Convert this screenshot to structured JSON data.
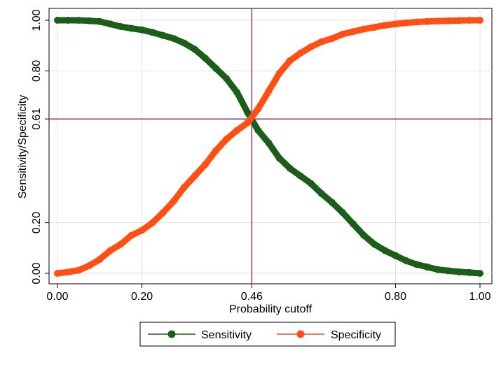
{
  "chart_data": {
    "type": "line",
    "title": "",
    "xlabel": "Probability cutoff",
    "ylabel": "Sensitivity/Specificity",
    "xlim": [
      0,
      1
    ],
    "ylim": [
      0,
      1
    ],
    "x_ticks": [
      {
        "value": 0.0,
        "label": "0.00"
      },
      {
        "value": 0.2,
        "label": "0.20"
      },
      {
        "value": 0.46,
        "label": "0.46"
      },
      {
        "value": 0.8,
        "label": "0.80"
      },
      {
        "value": 1.0,
        "label": "1.00"
      }
    ],
    "y_ticks": [
      {
        "value": 0.0,
        "label": "0.00"
      },
      {
        "value": 0.2,
        "label": "0.20"
      },
      {
        "value": 0.61,
        "label": "0.61"
      },
      {
        "value": 0.8,
        "label": "0.80"
      },
      {
        "value": 1.0,
        "label": "1.00"
      }
    ],
    "grid": true,
    "reference_lines": {
      "x": 0.46,
      "y": 0.61,
      "color": "#a0204c"
    },
    "legend": {
      "position": "bottom"
    },
    "x": [
      0.0,
      0.025,
      0.05,
      0.075,
      0.1,
      0.125,
      0.15,
      0.175,
      0.2,
      0.225,
      0.25,
      0.275,
      0.3,
      0.325,
      0.35,
      0.375,
      0.4,
      0.425,
      0.45,
      0.475,
      0.5,
      0.525,
      0.55,
      0.575,
      0.6,
      0.625,
      0.65,
      0.675,
      0.7,
      0.725,
      0.75,
      0.775,
      0.8,
      0.825,
      0.85,
      0.875,
      0.9,
      0.925,
      0.95,
      0.975,
      1.0
    ],
    "series": [
      {
        "name": "Sensitivity",
        "color": "#1a5e1a",
        "values": [
          1.0,
          1.0,
          1.0,
          0.998,
          0.995,
          0.985,
          0.975,
          0.968,
          0.962,
          0.952,
          0.94,
          0.928,
          0.91,
          0.885,
          0.85,
          0.81,
          0.77,
          0.715,
          0.635,
          0.565,
          0.515,
          0.455,
          0.415,
          0.385,
          0.355,
          0.315,
          0.28,
          0.24,
          0.195,
          0.15,
          0.115,
          0.09,
          0.07,
          0.05,
          0.035,
          0.025,
          0.015,
          0.01,
          0.006,
          0.003,
          0.0
        ]
      },
      {
        "name": "Specificity",
        "color": "#ff4f14",
        "values": [
          0.0,
          0.005,
          0.012,
          0.03,
          0.055,
          0.09,
          0.115,
          0.15,
          0.17,
          0.2,
          0.24,
          0.285,
          0.34,
          0.385,
          0.43,
          0.485,
          0.53,
          0.565,
          0.595,
          0.65,
          0.72,
          0.79,
          0.84,
          0.87,
          0.895,
          0.915,
          0.928,
          0.945,
          0.955,
          0.965,
          0.972,
          0.98,
          0.985,
          0.99,
          0.993,
          0.995,
          0.997,
          0.998,
          0.999,
          1.0,
          1.0
        ]
      }
    ]
  }
}
